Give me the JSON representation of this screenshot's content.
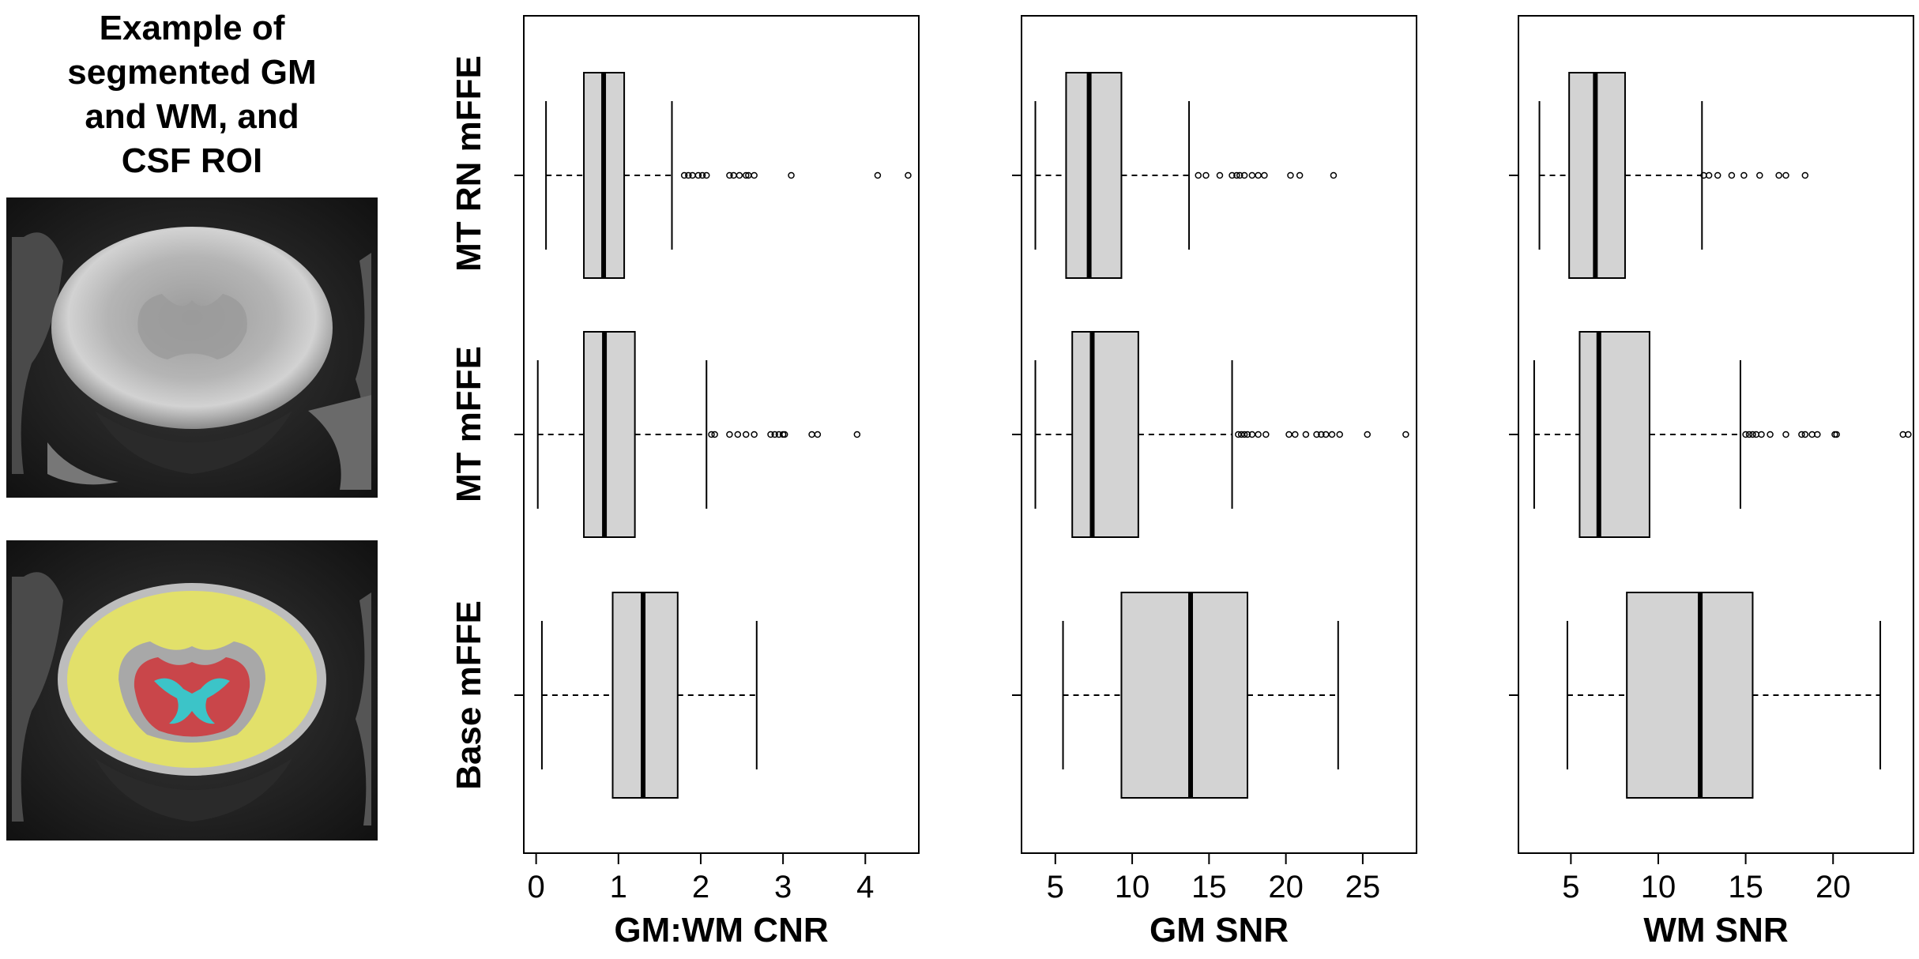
{
  "figure_title_lines": [
    "Example of",
    "segmented GM",
    "and WM, and",
    "CSF ROI"
  ],
  "colors": {
    "box_fill": "#d3d3d3",
    "stroke": "#000000",
    "seg_gm": "#c9464a",
    "seg_wm": "#e2e06a",
    "seg_csf": "#3cc4c8"
  },
  "images": [
    {
      "name": "mri-axial-image",
      "description_icon": "mri-slice"
    },
    {
      "name": "mri-segmented-image",
      "description_icon": "mri-segmentation"
    }
  ],
  "chart_data": [
    {
      "type": "boxplot",
      "orientation": "horizontal",
      "xlabel": "GM:WM CNR",
      "ylabel": "",
      "xlim": [
        -0.15,
        4.65
      ],
      "xticks": [
        0,
        1,
        2,
        3,
        4
      ],
      "categories": [
        "MT RN mFFE",
        "MT mFFE",
        "Base mFFE"
      ],
      "series": [
        {
          "category": "MT RN mFFE",
          "whisker_low": 0.12,
          "q1": 0.58,
          "median": 0.82,
          "q3": 1.07,
          "whisker_high": 1.65,
          "outliers": [
            1.8,
            1.85,
            1.9,
            1.97,
            2.02,
            2.07,
            2.35,
            2.4,
            2.47,
            2.55,
            2.58,
            2.65,
            3.1,
            4.15,
            4.52
          ]
        },
        {
          "category": "MT mFFE",
          "whisker_low": 0.02,
          "q1": 0.58,
          "median": 0.83,
          "q3": 1.2,
          "whisker_high": 2.07,
          "outliers": [
            2.13,
            2.17,
            2.35,
            2.45,
            2.55,
            2.65,
            2.85,
            2.9,
            2.95,
            3.0,
            3.02,
            3.35,
            3.42,
            3.9
          ]
        },
        {
          "category": "Base mFFE",
          "whisker_low": 0.07,
          "q1": 0.93,
          "median": 1.3,
          "q3": 1.72,
          "whisker_high": 2.68,
          "outliers": []
        }
      ]
    },
    {
      "type": "boxplot",
      "orientation": "horizontal",
      "xlabel": "GM SNR",
      "ylabel": "",
      "xlim": [
        2.8,
        28.5
      ],
      "xticks": [
        5,
        10,
        15,
        20,
        25
      ],
      "categories": [
        "MT RN mFFE",
        "MT mFFE",
        "Base mFFE"
      ],
      "series": [
        {
          "category": "MT RN mFFE",
          "whisker_low": 3.7,
          "q1": 5.7,
          "median": 7.2,
          "q3": 9.3,
          "whisker_high": 13.7,
          "outliers": [
            14.3,
            14.8,
            15.7,
            16.5,
            16.8,
            17.0,
            17.3,
            17.8,
            18.2,
            18.6,
            20.3,
            20.9,
            23.1
          ]
        },
        {
          "category": "MT mFFE",
          "whisker_low": 3.7,
          "q1": 6.1,
          "median": 7.4,
          "q3": 10.4,
          "whisker_high": 16.5,
          "outliers": [
            16.9,
            17.1,
            17.3,
            17.5,
            17.8,
            18.2,
            18.7,
            20.2,
            20.6,
            21.3,
            22.0,
            22.3,
            22.6,
            23.0,
            23.5,
            25.3,
            27.8
          ]
        },
        {
          "category": "Base mFFE",
          "whisker_low": 5.5,
          "q1": 9.3,
          "median": 13.8,
          "q3": 17.5,
          "whisker_high": 23.4,
          "outliers": []
        }
      ]
    },
    {
      "type": "boxplot",
      "orientation": "horizontal",
      "xlabel": "WM SNR",
      "ylabel": "",
      "xlim": [
        2.0,
        24.6
      ],
      "xticks": [
        5,
        10,
        15,
        20
      ],
      "categories": [
        "MT RN mFFE",
        "MT mFFE",
        "Base mFFE"
      ],
      "series": [
        {
          "category": "MT RN mFFE",
          "whisker_low": 3.2,
          "q1": 4.9,
          "median": 6.4,
          "q3": 8.1,
          "whisker_high": 12.5,
          "outliers": [
            12.6,
            12.9,
            13.4,
            14.2,
            14.9,
            15.8,
            16.9,
            17.3,
            18.4
          ]
        },
        {
          "category": "MT mFFE",
          "whisker_low": 2.9,
          "q1": 5.5,
          "median": 6.6,
          "q3": 9.5,
          "whisker_high": 14.7,
          "outliers": [
            15.0,
            15.2,
            15.4,
            15.6,
            15.9,
            16.4,
            17.3,
            18.2,
            18.4,
            18.8,
            19.1,
            20.1,
            20.2,
            24.0,
            24.3
          ]
        },
        {
          "category": "Base mFFE",
          "whisker_low": 4.8,
          "q1": 8.2,
          "median": 12.4,
          "q3": 15.4,
          "whisker_high": 22.7,
          "outliers": []
        }
      ]
    }
  ]
}
